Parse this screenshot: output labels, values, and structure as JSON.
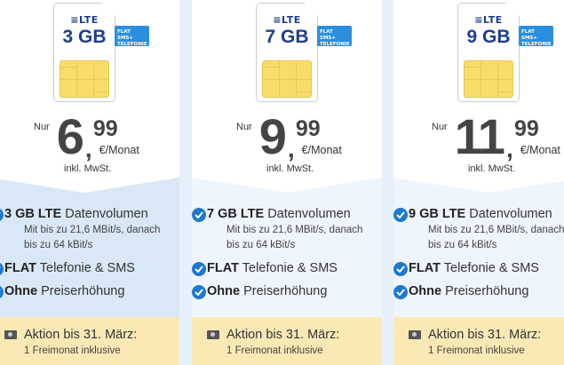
{
  "colors": {
    "accent": "#1f78cf",
    "badge": "#2b8fde",
    "sim_text": "#1d3d8f",
    "promo_bg": "#fbe9b5",
    "selected_bg": "#d8e8f6"
  },
  "plans": [
    {
      "lte": "LTE",
      "gb": "3 GB",
      "badge1": "FLAT SMS+",
      "badge2": "TELEFONIE",
      "nur": "Nur",
      "euros": "6",
      "comma": ",",
      "cents": "99",
      "per": "€/Monat",
      "vat": "inkl. MwSt.",
      "f1_bold": "3 GB LTE",
      "f1_rest": "Datenvolumen",
      "f1_sub1": "Mit bis zu 21,6 MBit/s, danach",
      "f1_sub2": "bis zu 64 kBit/s",
      "f2_bold": "FLAT",
      "f2_rest": "Telefonie & SMS",
      "f3_bold": "Ohne",
      "f3_rest": "Preiserhöhung",
      "promo_title": "Aktion bis 31. März:",
      "promo_sub": "1 Freimonat inklusive"
    },
    {
      "lte": "LTE",
      "gb": "7 GB",
      "badge1": "FLAT SMS+",
      "badge2": "TELEFONIE",
      "nur": "Nur",
      "euros": "9",
      "comma": ",",
      "cents": "99",
      "per": "€/Monat",
      "vat": "inkl. MwSt.",
      "f1_bold": "7 GB LTE",
      "f1_rest": "Datenvolumen",
      "f1_sub1": "Mit bis zu 21,6 MBit/s, danach",
      "f1_sub2": "bis zu 64 kBit/s",
      "f2_bold": "FLAT",
      "f2_rest": "Telefonie & SMS",
      "f3_bold": "Ohne",
      "f3_rest": "Preiserhöhung",
      "promo_title": "Aktion bis 31. März:",
      "promo_sub": "1 Freimonat inklusive"
    },
    {
      "lte": "LTE",
      "gb": "9 GB",
      "badge1": "FLAT SMS+",
      "badge2": "TELEFONIE",
      "nur": "Nur",
      "euros": "11",
      "comma": ",",
      "cents": "99",
      "per": "€/Monat",
      "vat": "inkl. MwSt.",
      "f1_bold": "9 GB LTE",
      "f1_rest": "Datenvolumen",
      "f1_sub1": "Mit bis zu 21,6 MBit/s, danach",
      "f1_sub2": "bis zu 64 kBit/s",
      "f2_bold": "FLAT",
      "f2_rest": "Telefonie & SMS",
      "f3_bold": "Ohne",
      "f3_rest": "Preiserhöhung",
      "promo_title": "Aktion bis 31. März:",
      "promo_sub": "1 Freimonat inklusive"
    }
  ]
}
